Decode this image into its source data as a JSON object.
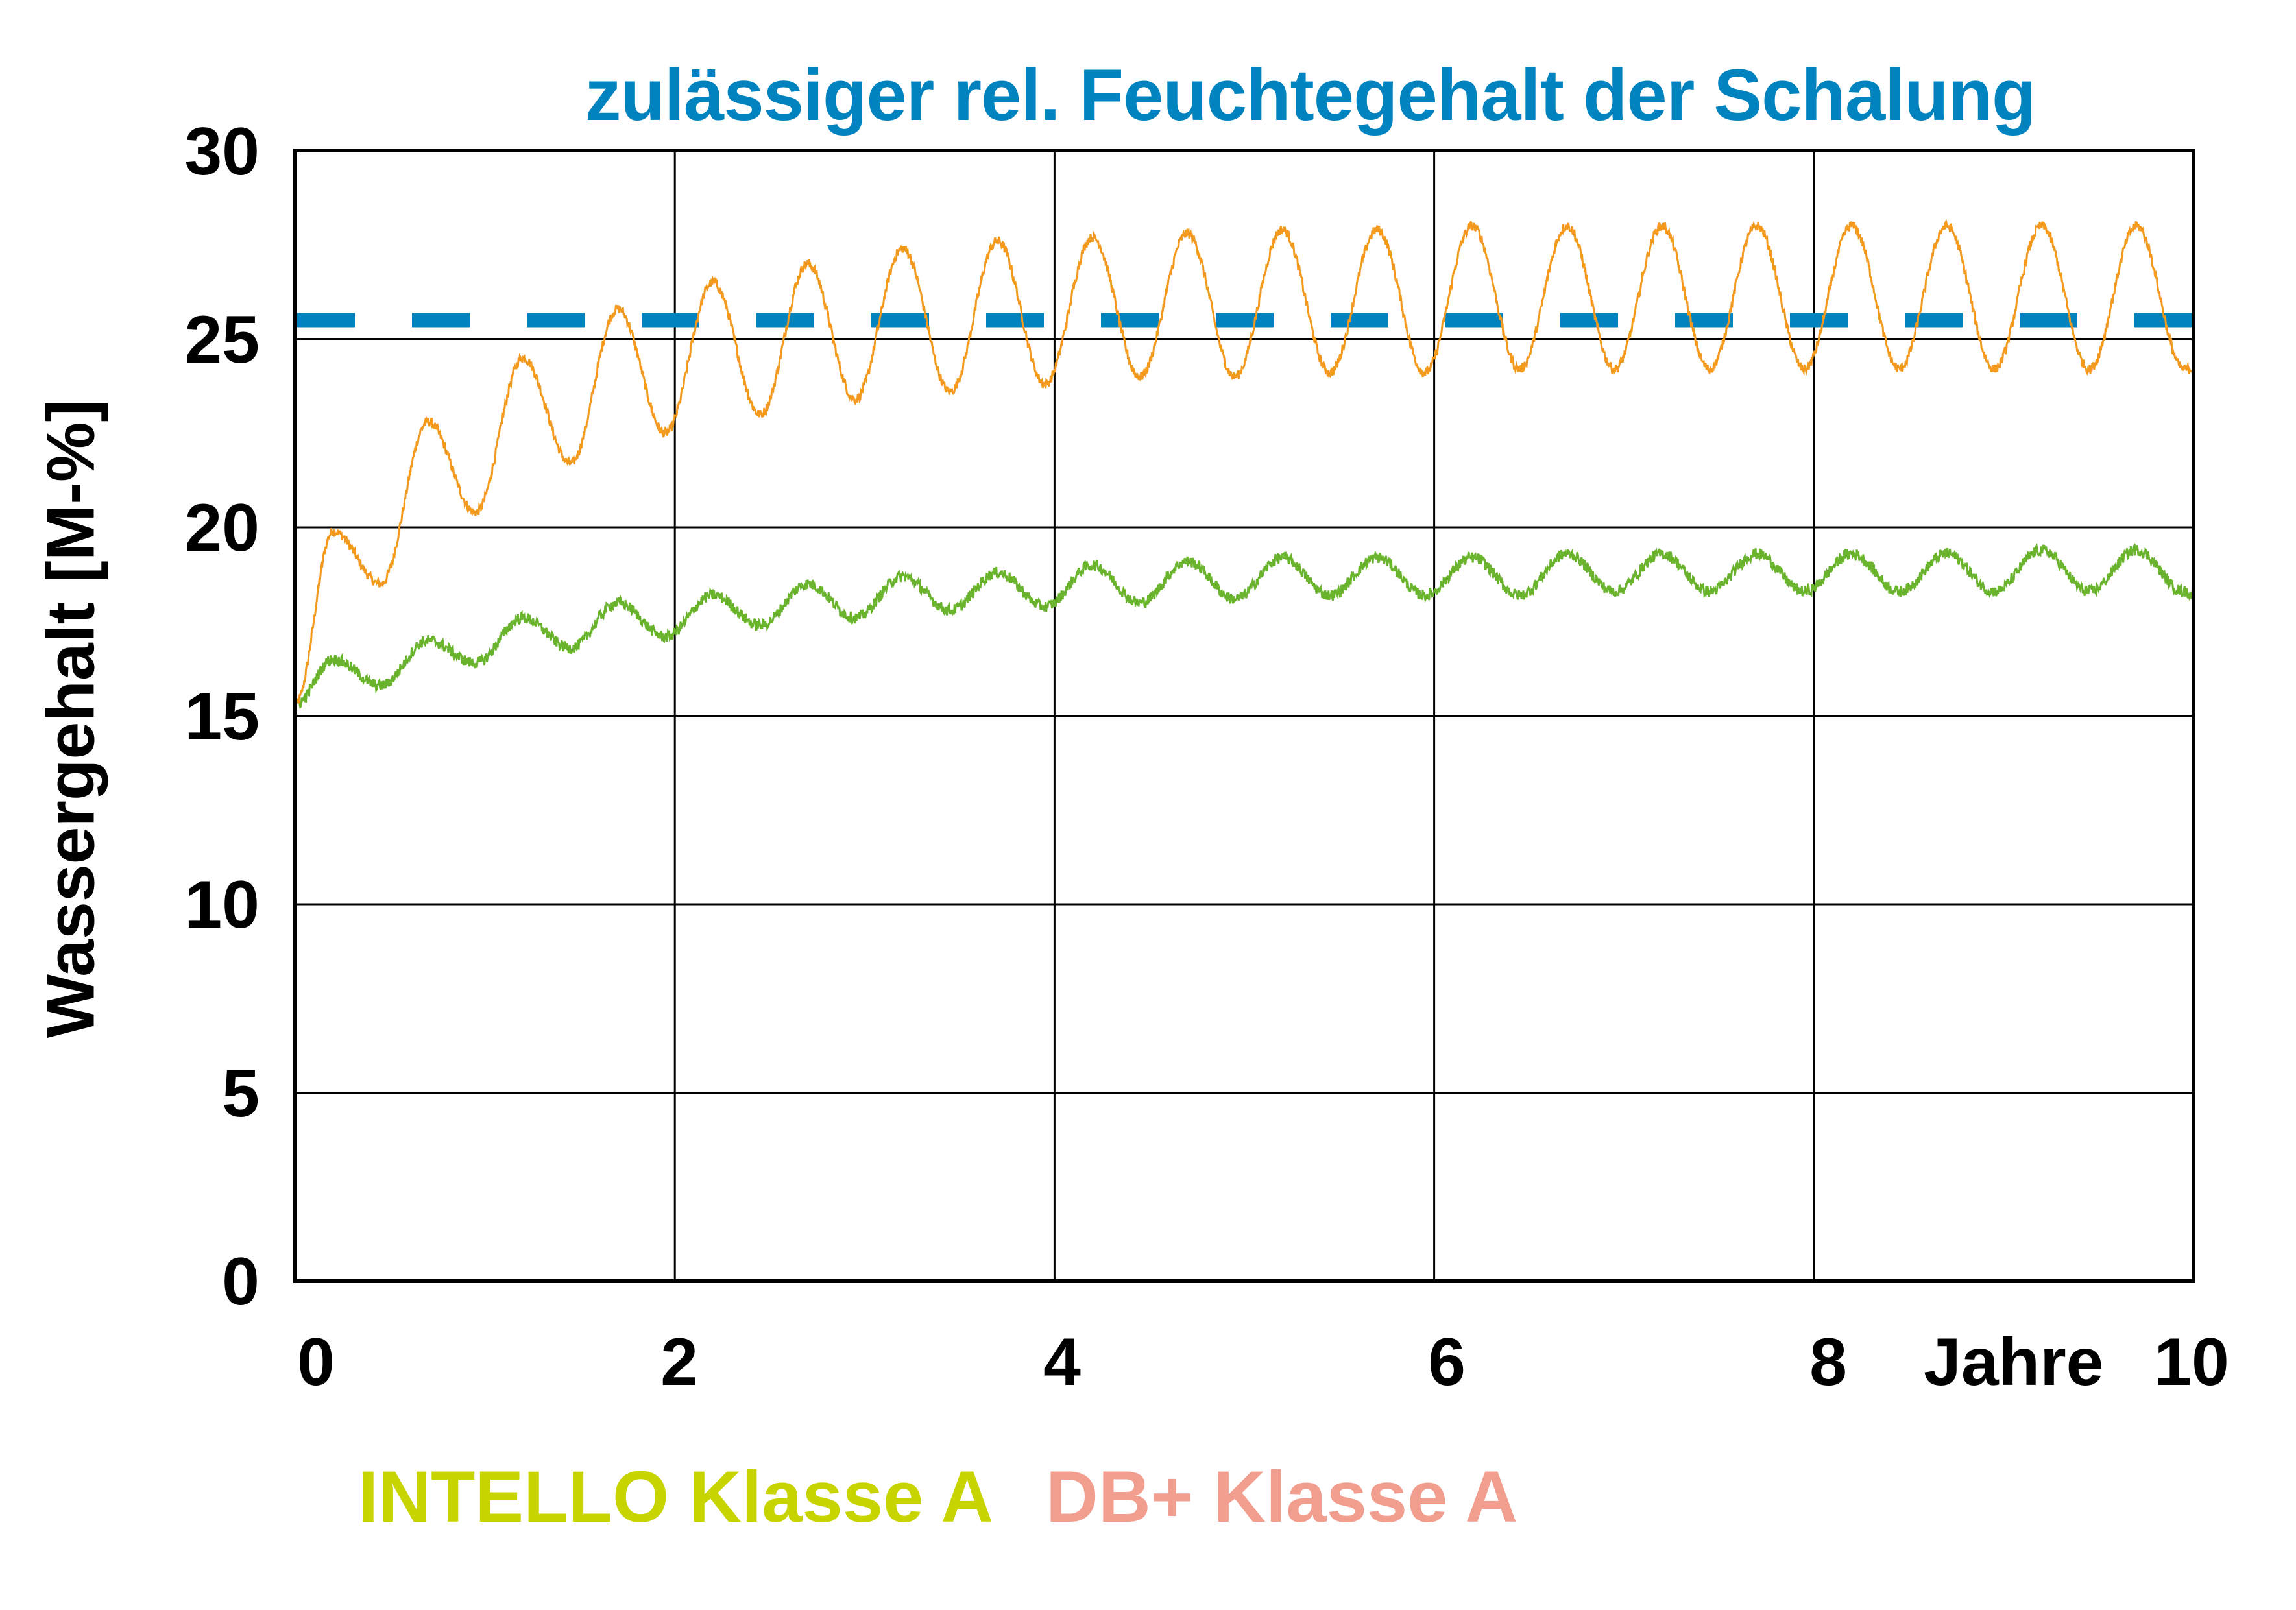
{
  "chart_data": {
    "type": "line",
    "title": "zulässiger rel. Feuchtegehalt der Schalung",
    "xlabel": "Jahre",
    "ylabel": "Wassergehalt [M-%]",
    "xlim": [
      0,
      10
    ],
    "ylim": [
      0,
      30
    ],
    "x_ticks": [
      "0",
      "2",
      "4",
      "6",
      "8",
      "10"
    ],
    "y_ticks": [
      "30",
      "25",
      "20",
      "15",
      "10",
      "5",
      "0"
    ],
    "grid": true,
    "legend_position": "bottom",
    "reference_line": {
      "name": "zulässiger rel. Feuchtegehalt der Schalung",
      "value": 25.5,
      "style": "dashed",
      "color": "#0083be"
    },
    "series": [
      {
        "name": "DB+ Klasse A",
        "legend_color": "#f29e8f",
        "line_color": "#f39a1e",
        "start": 15.3,
        "period_years": 0.5,
        "peaks": [
          19.9,
          22.8,
          24.5,
          25.8,
          26.5,
          27.0,
          27.4,
          27.6,
          27.7,
          27.8,
          27.9,
          27.9,
          28.0,
          28.0,
          28.0,
          28.0,
          28.0,
          28.0,
          28.0,
          28.0
        ],
        "troughs": [
          18.5,
          20.4,
          21.7,
          22.5,
          23.0,
          23.4,
          23.6,
          23.8,
          24.0,
          24.0,
          24.1,
          24.1,
          24.2,
          24.2,
          24.2,
          24.2,
          24.2,
          24.2,
          24.2,
          24.2
        ],
        "end": 24.2
      },
      {
        "name": "INTELLO Klasse A",
        "legend_color": "#c8d400",
        "line_color": "#6ab42d",
        "start": 15.3,
        "period_years": 0.5,
        "peaks": [
          16.5,
          17.0,
          17.6,
          18.0,
          18.2,
          18.5,
          18.7,
          18.8,
          19.0,
          19.1,
          19.2,
          19.2,
          19.2,
          19.3,
          19.3,
          19.3,
          19.3,
          19.3,
          19.4,
          19.4
        ],
        "troughs": [
          15.8,
          16.4,
          16.8,
          17.1,
          17.4,
          17.6,
          17.8,
          17.9,
          18.0,
          18.1,
          18.2,
          18.2,
          18.2,
          18.3,
          18.3,
          18.3,
          18.3,
          18.3,
          18.3,
          18.3
        ],
        "end": 18.2
      }
    ]
  },
  "legend": [
    {
      "label": "INTELLO Klasse A",
      "color": "#c8d400"
    },
    {
      "label": "DB+ Klasse A",
      "color": "#f29e8f"
    }
  ]
}
